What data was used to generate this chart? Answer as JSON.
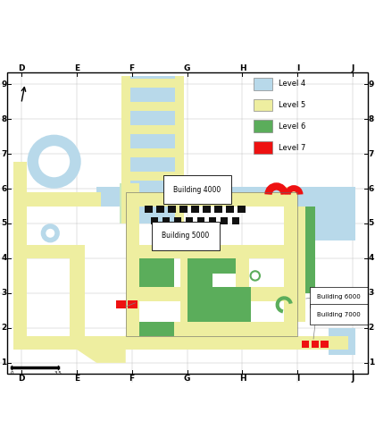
{
  "figsize": [
    4.2,
    5.0
  ],
  "dpi": 100,
  "colors": {
    "level4": "#B8D9EA",
    "level5": "#EEEEA0",
    "level6": "#5BAD5B",
    "level7": "#EE1111",
    "black": "#111111",
    "green_outline": "#3a8a3a",
    "yellow_outline": "#aaaa00",
    "blue_outline": "#7799bb",
    "light_green": "#C8E8C0"
  },
  "legend": [
    {
      "label": "Level 4",
      "color": "#B8D9EA"
    },
    {
      "label": "Level 5",
      "color": "#EEEEA0"
    },
    {
      "label": "Level 6",
      "color": "#5BAD5B"
    },
    {
      "label": "Level 7",
      "color": "#EE1111"
    }
  ],
  "grid_letters": [
    "D",
    "E",
    "F",
    "G",
    "H",
    "I",
    "J"
  ],
  "grid_numbers": [
    1,
    2,
    3,
    4,
    5,
    6,
    7,
    8,
    9
  ],
  "grid_x": [
    0.55,
    1.98,
    3.41,
    4.84,
    6.27,
    7.7,
    9.13
  ],
  "grid_y": [
    0.5,
    1.4,
    2.3,
    3.2,
    4.1,
    5.0,
    5.9,
    6.8,
    7.7
  ]
}
